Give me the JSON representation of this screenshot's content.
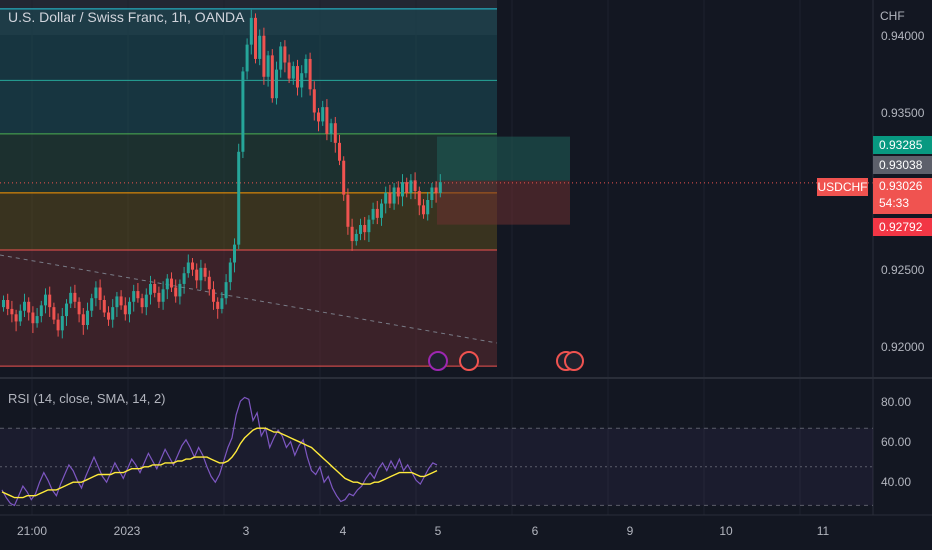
{
  "header": {
    "title": "U.S. Dollar / Swiss Franc, 1h, OANDA",
    "currency": "CHF"
  },
  "price_axis": {
    "ticks": [
      "0.94000",
      "0.93500",
      "0.92500",
      "0.92000"
    ]
  },
  "price_tags": {
    "target": "0.93285",
    "entry": "0.93038",
    "symbol": "USDCHF",
    "last": "0.93026",
    "countdown": "54:33",
    "stop": "0.92792"
  },
  "rsi": {
    "title": "RSI (14, close, SMA, 14, 2)",
    "ticks": [
      "80.00",
      "60.00",
      "40.00"
    ]
  },
  "time_axis": {
    "labels": [
      "21:00",
      "2023",
      "3",
      "4",
      "5",
      "6",
      "9",
      "10",
      "11"
    ]
  },
  "colors": {
    "background": "#131722",
    "up": "#26a69a",
    "down": "#ef5350",
    "rsi_line": "#7e57c2",
    "rsi_sma": "#ffeb3b",
    "target_tag": "#089981",
    "stop_tag": "#f23645"
  },
  "events": {
    "icons": [
      "lightning-icon",
      "us-flag-icon",
      "us-flag-icon",
      "us-flag-icon"
    ]
  },
  "chart_data": [
    {
      "type": "candlestick",
      "title": "U.S. Dollar / Swiss Franc, 1h, OANDA",
      "ylim": [
        0.9195,
        0.9405
      ],
      "fib_levels": [
        0.94,
        0.936,
        0.933,
        0.9297,
        0.9265,
        0.92
      ],
      "position": {
        "entry": 0.93038,
        "target": 0.93285,
        "stop": 0.92792
      },
      "closes": [
        0.9237,
        0.9232,
        0.9229,
        0.9225,
        0.9231,
        0.9236,
        0.923,
        0.9224,
        0.9228,
        0.9234,
        0.924,
        0.9233,
        0.9226,
        0.922,
        0.9228,
        0.9235,
        0.9241,
        0.9236,
        0.9229,
        0.9223,
        0.9231,
        0.9238,
        0.9244,
        0.9237,
        0.923,
        0.9226,
        0.9233,
        0.9239,
        0.9234,
        0.9229,
        0.9236,
        0.9242,
        0.9238,
        0.9233,
        0.924,
        0.9246,
        0.9241,
        0.9236,
        0.9243,
        0.9249,
        0.9244,
        0.9239,
        0.9246,
        0.9252,
        0.9258,
        0.9254,
        0.9248,
        0.9255,
        0.925,
        0.9243,
        0.9236,
        0.9232,
        0.9238,
        0.9247,
        0.9258,
        0.9268,
        0.932,
        0.9365,
        0.938,
        0.9395,
        0.9372,
        0.9385,
        0.9362,
        0.9374,
        0.935,
        0.9366,
        0.9379,
        0.937,
        0.9361,
        0.9368,
        0.9356,
        0.9364,
        0.9372,
        0.9355,
        0.9342,
        0.9337,
        0.9345,
        0.933,
        0.9336,
        0.9325,
        0.9315,
        0.9296,
        0.9278,
        0.927,
        0.9274,
        0.9279,
        0.9275,
        0.9282,
        0.9288,
        0.9283,
        0.9291,
        0.9297,
        0.9291,
        0.93,
        0.9295,
        0.9303,
        0.9297,
        0.9304,
        0.9298,
        0.929,
        0.9285,
        0.9293,
        0.93,
        0.9297,
        0.9303
      ]
    },
    {
      "type": "line",
      "title": "RSI (14, close, SMA, 14, 2)",
      "ylim": [
        25,
        95
      ],
      "bands": [
        70,
        50,
        30
      ],
      "series": [
        {
          "name": "RSI",
          "values": [
            38,
            34,
            31,
            30,
            35,
            40,
            37,
            33,
            36,
            42,
            47,
            43,
            38,
            35,
            41,
            46,
            51,
            48,
            43,
            39,
            45,
            50,
            55,
            50,
            45,
            42,
            47,
            52,
            48,
            44,
            49,
            54,
            51,
            47,
            52,
            57,
            53,
            49,
            54,
            59,
            55,
            51,
            56,
            61,
            64,
            60,
            55,
            60,
            56,
            50,
            45,
            42,
            46,
            53,
            60,
            65,
            77,
            84,
            86,
            85,
            74,
            78,
            66,
            70,
            60,
            65,
            69,
            66,
            60,
            63,
            56,
            61,
            64,
            55,
            48,
            46,
            50,
            42,
            45,
            39,
            35,
            32,
            33,
            36,
            35,
            38,
            40,
            44,
            47,
            44,
            49,
            52,
            48,
            53,
            49,
            54,
            48,
            51,
            47,
            43,
            41,
            45,
            49,
            52,
            51
          ]
        },
        {
          "name": "SMA",
          "values": [
            37,
            36,
            35,
            34,
            34,
            34,
            35,
            35,
            35,
            36,
            37,
            38,
            38,
            38,
            39,
            40,
            41,
            42,
            42,
            42,
            43,
            44,
            45,
            46,
            46,
            46,
            46,
            47,
            47,
            47,
            48,
            49,
            49,
            49,
            50,
            50,
            51,
            51,
            51,
            52,
            52,
            52,
            53,
            53,
            54,
            54,
            55,
            55,
            55,
            55,
            54,
            53,
            52,
            52,
            53,
            55,
            58,
            62,
            65,
            67,
            69,
            70,
            70,
            70,
            69,
            68,
            68,
            67,
            66,
            65,
            64,
            63,
            62,
            61,
            60,
            58,
            56,
            54,
            52,
            50,
            48,
            46,
            44,
            43,
            42,
            42,
            41,
            41,
            41,
            42,
            42,
            43,
            44,
            45,
            46,
            47,
            47,
            47,
            47,
            46,
            45,
            45,
            46,
            47,
            48
          ]
        }
      ]
    }
  ]
}
